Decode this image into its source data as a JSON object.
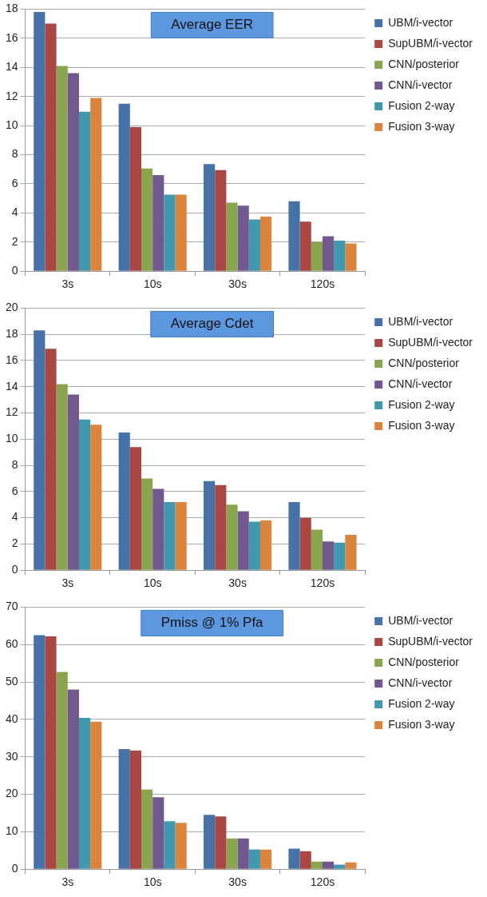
{
  "chart_data": [
    {
      "type": "bar",
      "title": "Average EER",
      "categories": [
        "3s",
        "10s",
        "30s",
        "120s"
      ],
      "ylim": [
        0,
        18
      ],
      "yticks": [
        0,
        2,
        4,
        6,
        8,
        10,
        12,
        14,
        16,
        18
      ],
      "grid": "y",
      "legend": "right",
      "series": [
        {
          "name": "UBM/i-vector",
          "color": "#4672a8",
          "values": [
            17.8,
            11.5,
            7.35,
            4.8
          ]
        },
        {
          "name": "SupUBM/i-vector",
          "color": "#aa4643",
          "values": [
            17.0,
            9.9,
            6.95,
            3.4
          ]
        },
        {
          "name": "CNN/posterior",
          "color": "#89a54e",
          "values": [
            14.1,
            7.05,
            4.7,
            2.0
          ]
        },
        {
          "name": "CNN/i-vector",
          "color": "#71588f",
          "values": [
            13.6,
            6.6,
            4.5,
            2.4
          ]
        },
        {
          "name": "Fusion 2-way",
          "color": "#4198af",
          "values": [
            10.95,
            5.25,
            3.55,
            2.1
          ]
        },
        {
          "name": "Fusion 3-way",
          "color": "#db843d",
          "values": [
            11.9,
            5.25,
            3.75,
            1.9
          ]
        }
      ]
    },
    {
      "type": "bar",
      "title": "Average Cdet",
      "categories": [
        "3s",
        "10s",
        "30s",
        "120s"
      ],
      "ylim": [
        0,
        20
      ],
      "yticks": [
        0,
        2,
        4,
        6,
        8,
        10,
        12,
        14,
        16,
        18,
        20
      ],
      "grid": "y",
      "legend": "right",
      "series": [
        {
          "name": "UBM/i-vector",
          "color": "#4672a8",
          "values": [
            18.3,
            10.5,
            6.8,
            5.2
          ]
        },
        {
          "name": "SupUBM/i-vector",
          "color": "#aa4643",
          "values": [
            16.9,
            9.4,
            6.5,
            4.0
          ]
        },
        {
          "name": "CNN/posterior",
          "color": "#89a54e",
          "values": [
            14.2,
            7.0,
            5.0,
            3.1
          ]
        },
        {
          "name": "CNN/i-vector",
          "color": "#71588f",
          "values": [
            13.4,
            6.2,
            4.5,
            2.2
          ]
        },
        {
          "name": "Fusion 2-way",
          "color": "#4198af",
          "values": [
            11.5,
            5.2,
            3.7,
            2.1
          ]
        },
        {
          "name": "Fusion 3-way",
          "color": "#db843d",
          "values": [
            11.1,
            5.2,
            3.8,
            2.7
          ]
        }
      ]
    },
    {
      "type": "bar",
      "title": "Pmiss @ 1% Pfa",
      "categories": [
        "3s",
        "10s",
        "30s",
        "120s"
      ],
      "ylim": [
        0,
        70
      ],
      "yticks": [
        0,
        10,
        20,
        30,
        40,
        50,
        60,
        70
      ],
      "grid": "y",
      "legend": "right",
      "series": [
        {
          "name": "UBM/i-vector",
          "color": "#4672a8",
          "values": [
            62.5,
            32.1,
            14.5,
            5.5
          ]
        },
        {
          "name": "SupUBM/i-vector",
          "color": "#aa4643",
          "values": [
            62.2,
            31.7,
            14.1,
            4.8
          ]
        },
        {
          "name": "CNN/posterior",
          "color": "#89a54e",
          "values": [
            52.7,
            21.3,
            8.2,
            2.0
          ]
        },
        {
          "name": "CNN/i-vector",
          "color": "#71588f",
          "values": [
            48.0,
            19.2,
            8.2,
            2.0
          ]
        },
        {
          "name": "Fusion 2-way",
          "color": "#4198af",
          "values": [
            40.4,
            12.8,
            5.3,
            1.2
          ]
        },
        {
          "name": "Fusion 3-way",
          "color": "#db843d",
          "values": [
            39.4,
            12.4,
            5.2,
            1.8
          ]
        }
      ]
    }
  ]
}
